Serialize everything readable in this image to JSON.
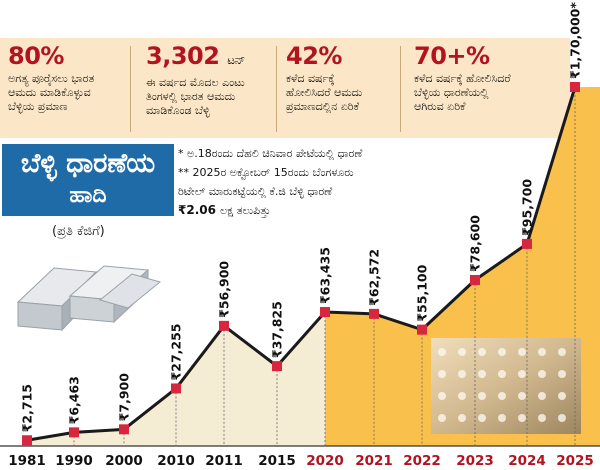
{
  "stats": [
    {
      "big": "80%",
      "unit": "",
      "desc": [
        "ಅಗತ್ಯ ಪೂರೈಸಲು ಭಾರತ",
        "ಆಮದು ಮಾಡಿಕೊಳ್ಳುವ",
        "ಬೆಳ್ಳಿಯ ಪ್ರಮಾಣ"
      ]
    },
    {
      "big": "3,302",
      "unit": "ಟನ್",
      "desc": [
        "ಈ ವರ್ಷದ ಮೊದಲ ಎಂಟು",
        "ತಿಂಗಳಲ್ಲಿ ಭಾರತ ಆಮದು",
        "ಮಾಡಿಕೊಂಡ ಬೆಳ್ಳಿ"
      ]
    },
    {
      "big": "42%",
      "unit": "",
      "desc": [
        "ಕಳೆದ ವರ್ಷಕ್ಕೆ",
        "ಹೋಲಿಸಿದರೆ ಆಮದು",
        "ಪ್ರಮಾಣದಲ್ಲಿನ ಏರಿಕೆ"
      ]
    },
    {
      "big": "70+%",
      "unit": "",
      "desc": [
        "ಕಳೆದ ವರ್ಷಕ್ಕೆ ಹೋಲಿಸಿದರೆ",
        "ಬೆಳ್ಳಿಯ ಧಾರಣೆಯಲ್ಲಿ",
        "ಆಗಿರುವ ಏರಿಕೆ"
      ]
    }
  ],
  "title": {
    "line1": "ಬೆಳ್ಳಿ ಧಾರಣೆಯ",
    "line2": "ಹಾದಿ"
  },
  "per_kg": "(ಪ್ರತಿ ಕೆಜಿಗೆ)",
  "notes": {
    "line1": "* ಅ.18ರಂದು ದೆಹಲಿ ಚಿನಿವಾರ ಪೇಟೆಯಲ್ಲಿ ಧಾರಣೆ",
    "line2": "** 2025ರ ಅಕ್ಟೋಬರ್ 15ರಂದು ಬೆಂಗಳೂರು",
    "line3": "ರಿಟೇಲ್ ಮಾರುಕಟ್ಟೆಯಲ್ಲಿ ಕೆ.ಜಿ ಬೆಳ್ಳಿ ಧಾರಣೆ",
    "price_bold": "₹2.06 ",
    "price_rest": "ಲಕ್ಷ ತಲುಪಿತ್ತು"
  },
  "colors": {
    "accent": "#b3121f",
    "highlight_fill": "#f9c04c",
    "early_fill": "#f5ecd4",
    "line": "#1a1a1a",
    "marker": "#d7263d",
    "title_bg": "#1f6ba8",
    "stats_bg": "#fbe7c7"
  },
  "chart_data": {
    "type": "line",
    "title": "ಬೆಳ್ಳಿ ಧಾರಣೆಯ ಹಾದಿ",
    "subtitle": "(ಪ್ರತಿ ಕೆಜಿಗೆ)",
    "categories": [
      "1981",
      "1990",
      "2000",
      "2010",
      "2011",
      "2015",
      "2020",
      "2021",
      "2022",
      "2023",
      "2024",
      "2025"
    ],
    "values": [
      2715,
      6463,
      7900,
      27255,
      56900,
      37825,
      63435,
      62572,
      55100,
      78600,
      95700,
      170000
    ],
    "value_labels": [
      "₹2,715",
      "₹6,463",
      "₹7,900",
      "₹27,255",
      "₹56,900",
      "₹37,825",
      "₹63,435",
      "₹62,572",
      "₹55,100",
      "₹78,600",
      "₹95,700",
      "₹1,70,000*"
    ],
    "highlight_from": "2020",
    "ylim": [
      0,
      170000
    ],
    "grid": false,
    "legend": "none"
  }
}
